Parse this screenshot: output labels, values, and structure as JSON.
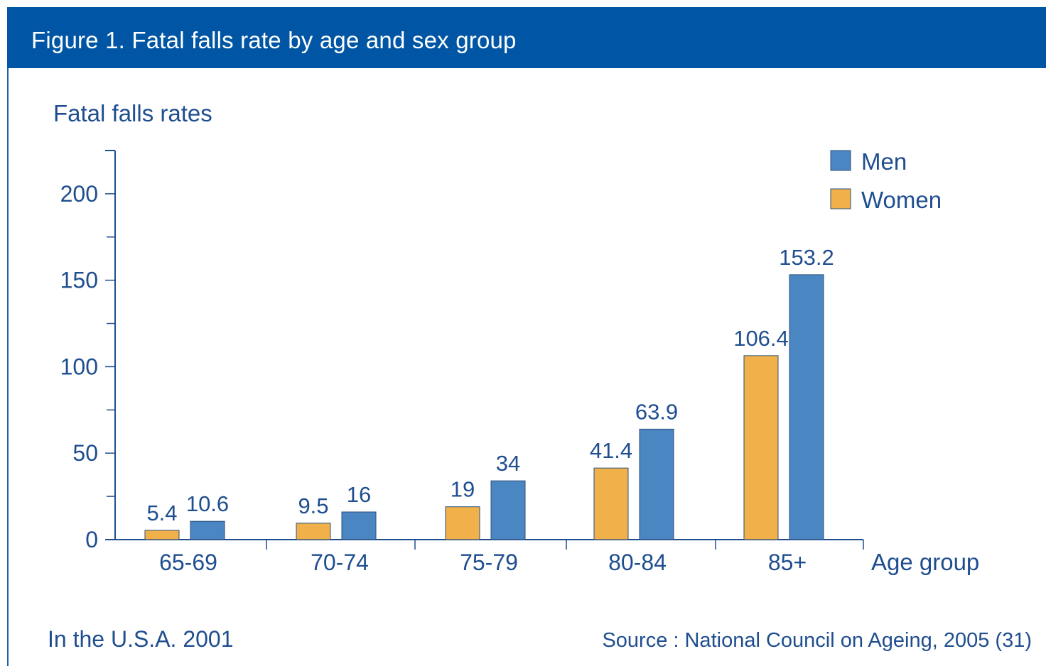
{
  "figure": {
    "title": "Figure 1.  Fatal falls rate by age and sex group",
    "footer_left": "In the U.S.A. 2001",
    "footer_right": "Source : National Council on Ageing, 2005 (31)"
  },
  "colors": {
    "header": "#0055a4",
    "text": "#1f4e8f",
    "men": "#4a86c1",
    "women": "#f0b14b",
    "axis": "#1f4e8f"
  },
  "chart_data": {
    "type": "bar",
    "ylabel": "Fatal falls rates",
    "xlabel": "Age group",
    "categories": [
      "65-69",
      "70-74",
      "75-79",
      "80-84",
      "85+"
    ],
    "series": [
      {
        "name": "Women",
        "values": [
          5.4,
          9.5,
          19,
          41.4,
          106.4
        ],
        "labels": [
          "5.4",
          "9.5",
          "19",
          "41.4",
          "106.4"
        ]
      },
      {
        "name": "Men",
        "values": [
          10.6,
          16,
          34,
          63.9,
          153.2
        ],
        "labels": [
          "10.6",
          "16",
          "34",
          "63.9",
          "153.2"
        ]
      }
    ],
    "yticks": [
      "0",
      "50",
      "100",
      "150",
      "200"
    ],
    "ylim": [
      0,
      225
    ],
    "legend": {
      "position": "top-right",
      "order": [
        "Men",
        "Women"
      ]
    },
    "grid": false
  }
}
